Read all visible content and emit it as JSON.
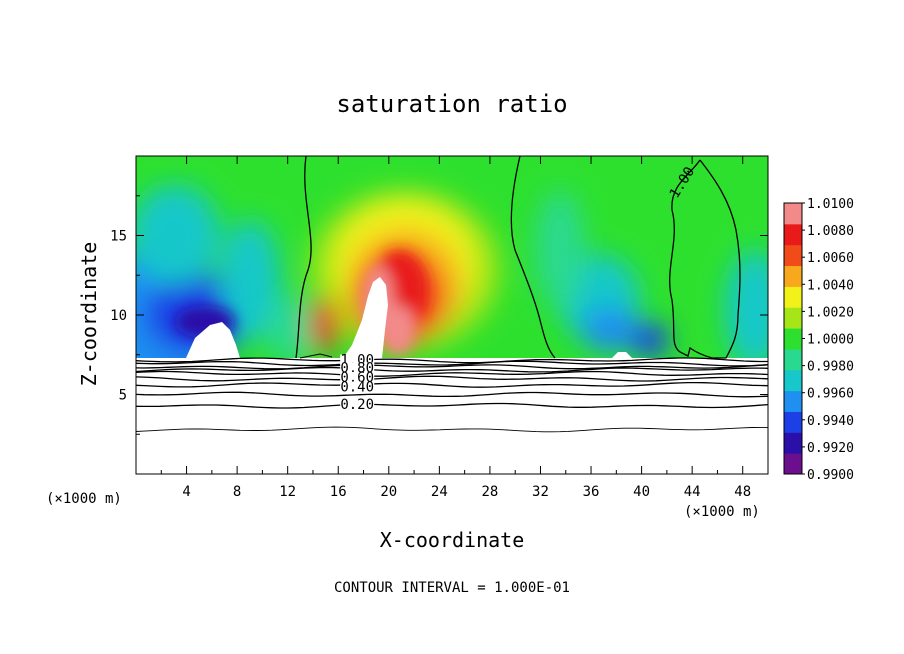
{
  "chart_data": {
    "type": "heatmap",
    "title": "saturation ratio",
    "xlabel": "X-coordinate",
    "ylabel": "Z-coordinate",
    "x_unit_left": "(×1000 m)",
    "x_unit_right": "(×1000 m)",
    "footer": "CONTOUR INTERVAL = 1.000E-01",
    "xlim": [
      0,
      50
    ],
    "ylim": [
      0,
      20
    ],
    "x_ticks": [
      "4",
      "8",
      "12",
      "16",
      "20",
      "24",
      "28",
      "32",
      "36",
      "40",
      "44",
      "48"
    ],
    "x_tick_values": [
      4,
      8,
      12,
      16,
      20,
      24,
      28,
      32,
      36,
      40,
      44,
      48
    ],
    "y_ticks": [
      "5",
      "10",
      "15"
    ],
    "y_tick_values": [
      5,
      10,
      15
    ],
    "colorbar": {
      "min": 0.99,
      "max": 1.01,
      "labels": [
        "1.0100",
        "1.0080",
        "1.0060",
        "1.0040",
        "1.0020",
        "1.0000",
        "0.9980",
        "0.9960",
        "0.9940",
        "0.9920",
        "0.9900"
      ],
      "colors": [
        "#6b0f8f",
        "#2a0fa8",
        "#1c3fe6",
        "#1f8ff0",
        "#18c7c9",
        "#29d98f",
        "#2ee02e",
        "#a6e619",
        "#f2f21a",
        "#f7a81c",
        "#f24b1a",
        "#e81a1a",
        "#f28a8a"
      ]
    },
    "cloud_base_z": 7.2,
    "contour_labels": [
      {
        "text": "1.00",
        "x": 17.5,
        "z": 7.2
      },
      {
        "text": "0.80",
        "x": 17.5,
        "z": 6.7
      },
      {
        "text": "0.60",
        "x": 17.5,
        "z": 6.1
      },
      {
        "text": "0.40",
        "x": 17.5,
        "z": 5.5
      },
      {
        "text": "0.20",
        "x": 17.5,
        "z": 4.4
      },
      {
        "text": "1.00",
        "x": 43.5,
        "z": 18.5
      }
    ],
    "low_contour_levels_z": [
      7.15,
      6.95,
      6.75,
      6.55,
      6.3,
      6.0,
      5.6,
      5.0,
      4.3,
      2.8
    ]
  }
}
